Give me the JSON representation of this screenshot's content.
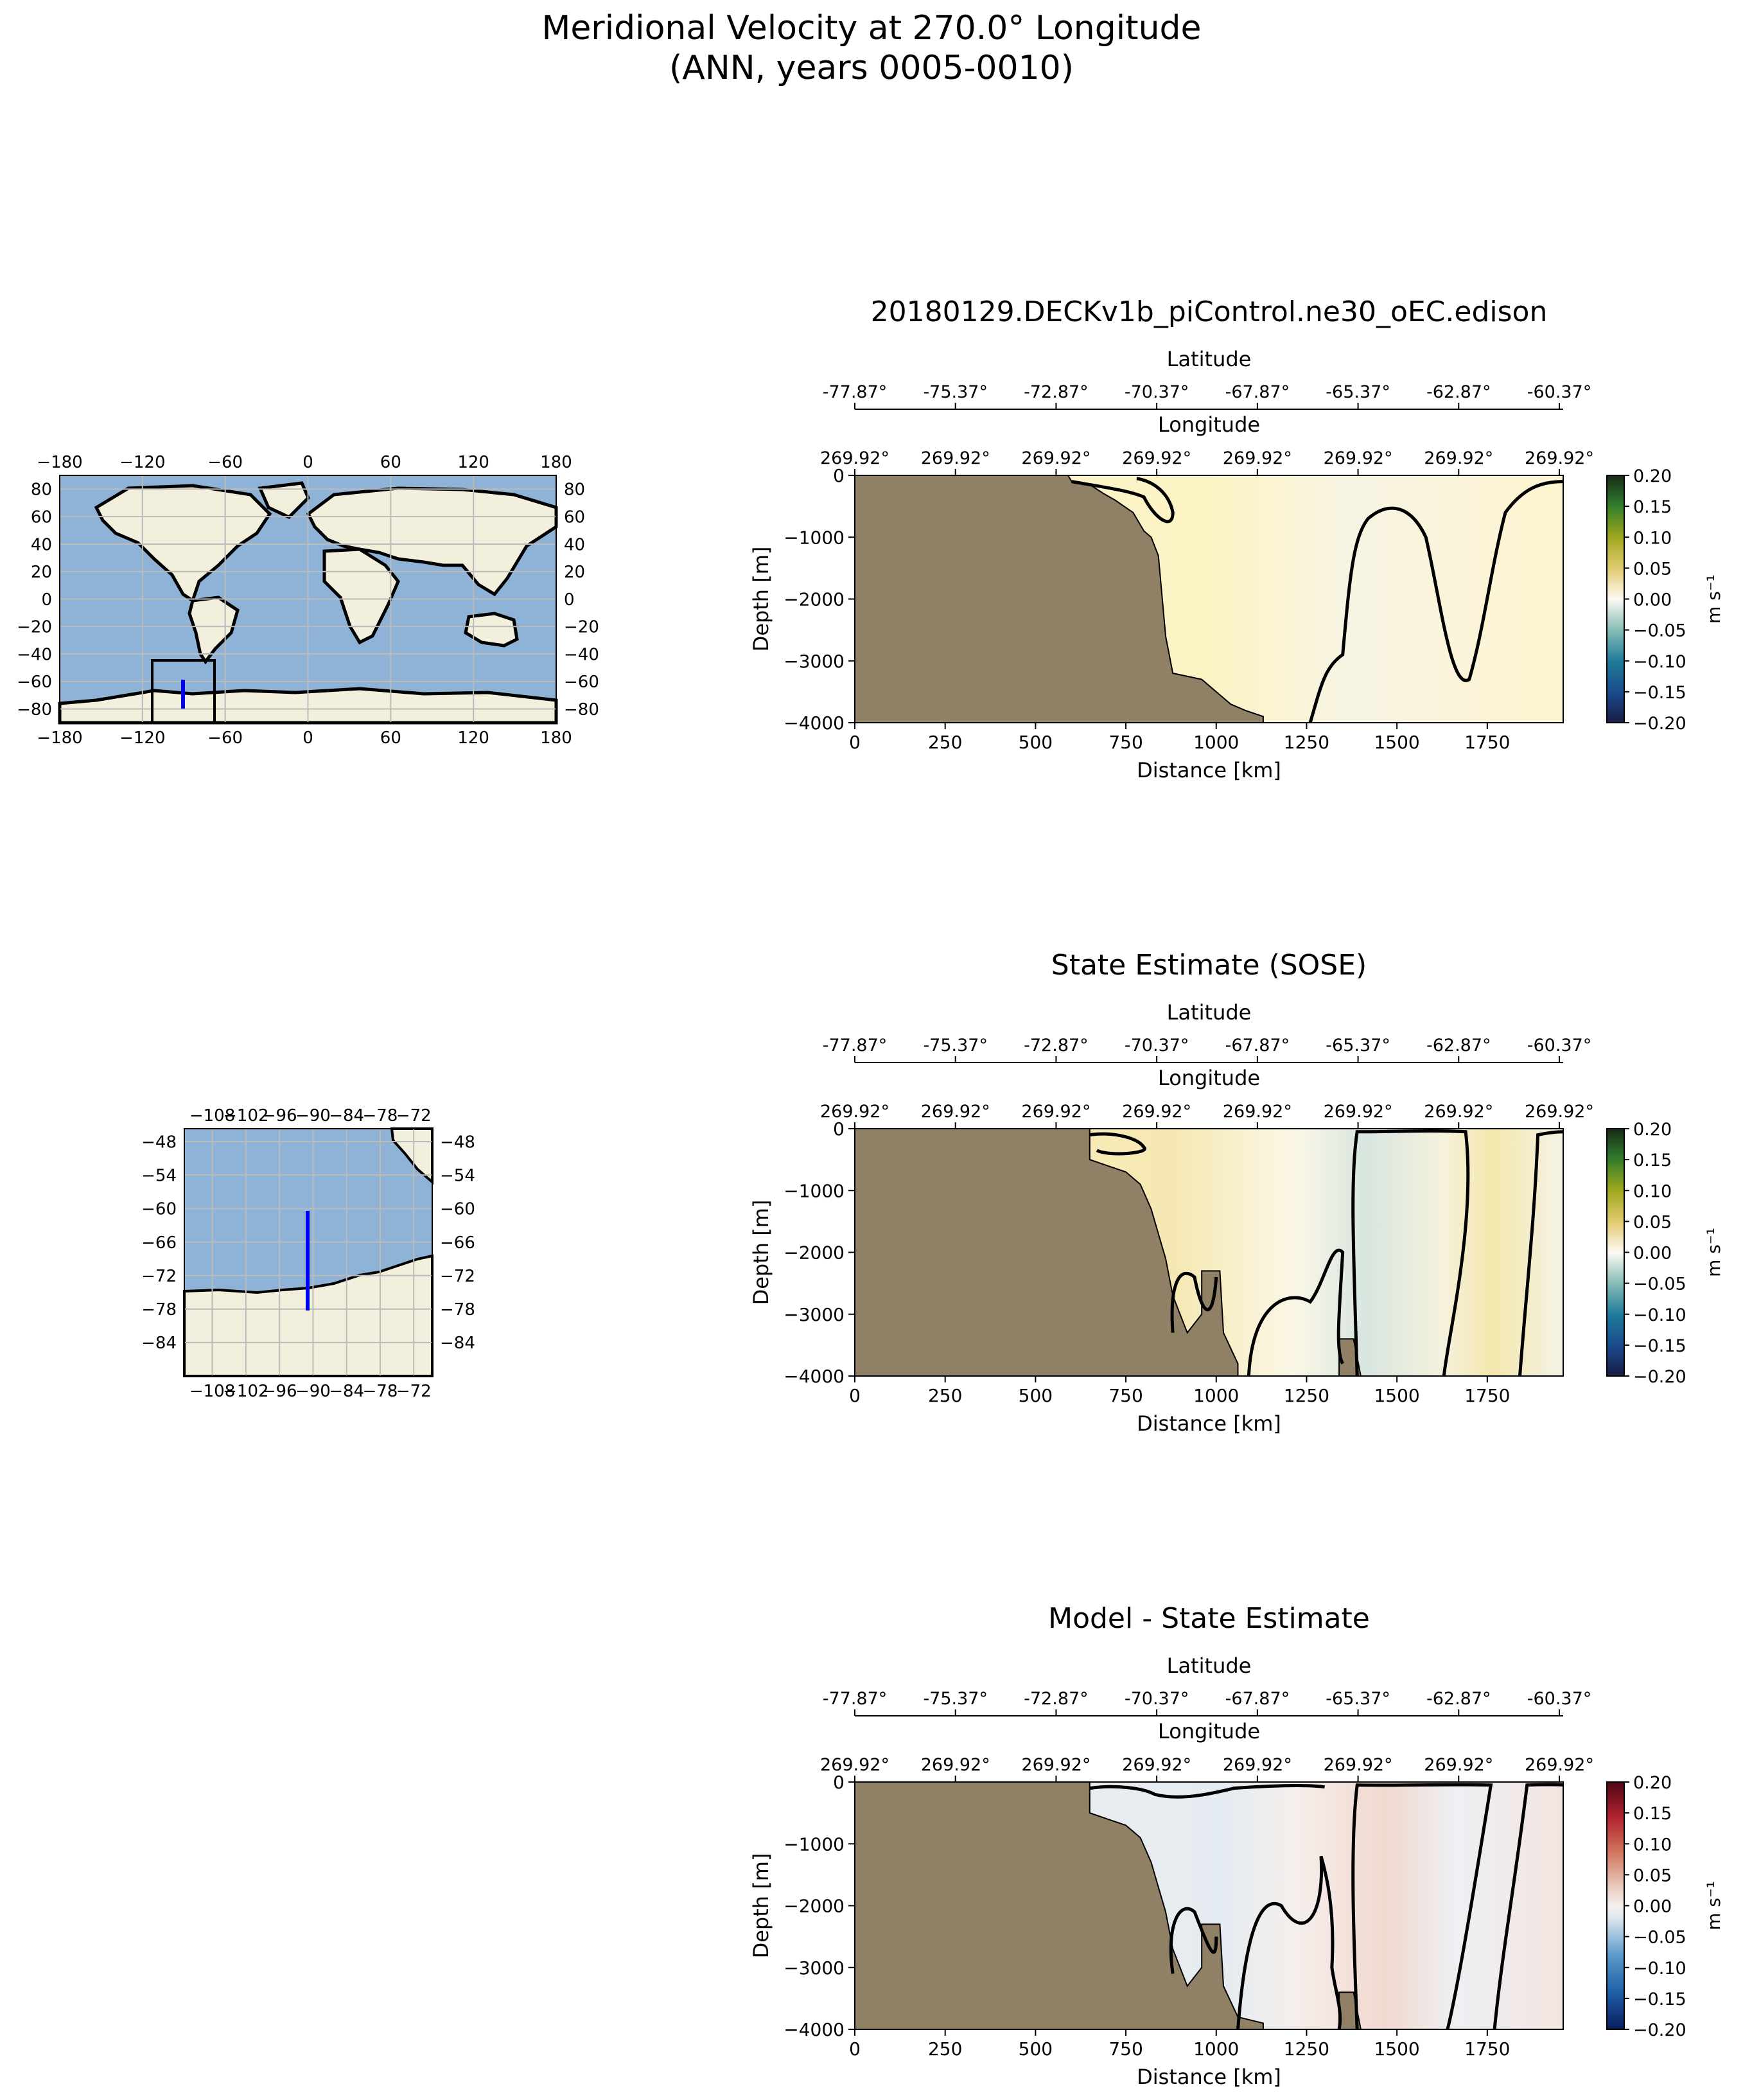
{
  "figure": {
    "title_line1": "Meridional Velocity at 270.0° Longitude",
    "title_line2": "(ANN, years 0005-0010)"
  },
  "maps": [
    {
      "kind": "global",
      "x_ticks": [
        "−180",
        "−120",
        "−60",
        "0",
        "60",
        "120",
        "180"
      ],
      "y_ticks": [
        "80",
        "60",
        "40",
        "20",
        "0",
        "−20",
        "−40",
        "−60",
        "−80"
      ]
    },
    {
      "kind": "regional",
      "x_ticks": [
        "−108",
        "−102",
        "−96",
        "−90",
        "−84",
        "−78",
        "−72"
      ],
      "y_ticks": [
        "−48",
        "−54",
        "−60",
        "−66",
        "−72",
        "−78",
        "−84"
      ]
    }
  ],
  "chart_data": [
    {
      "type": "heatmap",
      "title": "20180129.DECKv1b_piControl.ne30_oEC.edison",
      "xlabel": "Distance [km]",
      "ylabel": "Depth [m]",
      "xlim": [
        0,
        1960
      ],
      "ylim": [
        -4000,
        0
      ],
      "x_ticks": [
        "0",
        "250",
        "500",
        "750",
        "1000",
        "1250",
        "1500",
        "1750"
      ],
      "y_ticks": [
        "0",
        "−1000",
        "−2000",
        "−3000",
        "−4000"
      ],
      "top_axis1_label": "Latitude",
      "top_axis1_ticks": [
        "-77.87°",
        "-75.37°",
        "-72.87°",
        "-70.37°",
        "-67.87°",
        "-65.37°",
        "-62.87°",
        "-60.37°"
      ],
      "top_axis2_label": "Longitude",
      "top_axis2_ticks": [
        "269.92°",
        "269.92°",
        "269.92°",
        "269.92°",
        "269.92°",
        "269.92°",
        "269.92°",
        "269.92°"
      ],
      "colorbar_ticks": [
        "0.20",
        "0.15",
        "0.10",
        "0.05",
        "0.00",
        "−0.05",
        "−0.10",
        "−0.15",
        "−0.20"
      ],
      "colorbar_label": "m s⁻¹",
      "colormap": "ocean-balance",
      "vlim": [
        -0.2,
        0.2
      ]
    },
    {
      "type": "heatmap",
      "title": "State Estimate (SOSE)",
      "xlabel": "Distance [km]",
      "ylabel": "Depth [m]",
      "xlim": [
        0,
        1960
      ],
      "ylim": [
        -4000,
        0
      ],
      "x_ticks": [
        "0",
        "250",
        "500",
        "750",
        "1000",
        "1250",
        "1500",
        "1750"
      ],
      "y_ticks": [
        "0",
        "−1000",
        "−2000",
        "−3000",
        "−4000"
      ],
      "top_axis1_label": "Latitude",
      "top_axis1_ticks": [
        "-77.87°",
        "-75.37°",
        "-72.87°",
        "-70.37°",
        "-67.87°",
        "-65.37°",
        "-62.87°",
        "-60.37°"
      ],
      "top_axis2_label": "Longitude",
      "top_axis2_ticks": [
        "269.92°",
        "269.92°",
        "269.92°",
        "269.92°",
        "269.92°",
        "269.92°",
        "269.92°",
        "269.92°"
      ],
      "colorbar_ticks": [
        "0.20",
        "0.15",
        "0.10",
        "0.05",
        "0.00",
        "−0.05",
        "−0.10",
        "−0.15",
        "−0.20"
      ],
      "colorbar_label": "m s⁻¹",
      "colormap": "ocean-balance",
      "vlim": [
        -0.2,
        0.2
      ]
    },
    {
      "type": "heatmap",
      "title": "Model - State Estimate",
      "xlabel": "Distance [km]",
      "ylabel": "Depth [m]",
      "xlim": [
        0,
        1960
      ],
      "ylim": [
        -4000,
        0
      ],
      "x_ticks": [
        "0",
        "250",
        "500",
        "750",
        "1000",
        "1250",
        "1500",
        "1750"
      ],
      "y_ticks": [
        "0",
        "−1000",
        "−2000",
        "−3000",
        "−4000"
      ],
      "top_axis1_label": "Latitude",
      "top_axis1_ticks": [
        "-77.87°",
        "-75.37°",
        "-72.87°",
        "-70.37°",
        "-67.87°",
        "-65.37°",
        "-62.87°",
        "-60.37°"
      ],
      "top_axis2_label": "Longitude",
      "top_axis2_ticks": [
        "269.92°",
        "269.92°",
        "269.92°",
        "269.92°",
        "269.92°",
        "269.92°",
        "269.92°",
        "269.92°"
      ],
      "colorbar_ticks": [
        "0.20",
        "0.15",
        "0.10",
        "0.05",
        "0.00",
        "−0.05",
        "−0.10",
        "−0.15",
        "−0.20"
      ],
      "colorbar_label": "m s⁻¹",
      "colormap": "red-blue",
      "vlim": [
        -0.2,
        0.2
      ]
    }
  ],
  "colors": {
    "land_section": "#8f8066",
    "ocean_map": "#8fb3d6",
    "land_map": "#f2f0dc",
    "transect": "#0000ee"
  }
}
